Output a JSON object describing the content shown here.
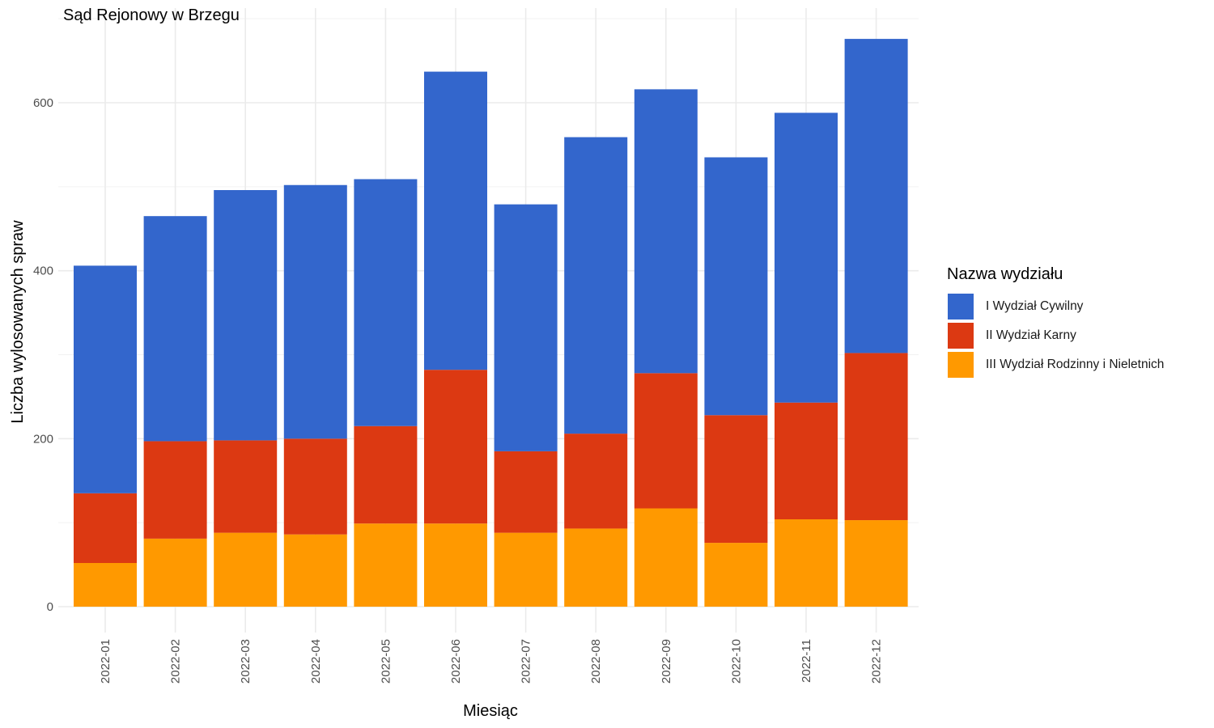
{
  "chart_data": {
    "type": "bar",
    "stacked": true,
    "title": "Sąd Rejonowy w Brzegu",
    "xlabel": "Miesiąc",
    "ylabel": "Liczba wylosowanych spraw",
    "ylim": [
      0,
      710
    ],
    "yticks": [
      0,
      200,
      400,
      600
    ],
    "ytick_labels": [
      "0",
      "200",
      "400",
      "600"
    ],
    "grid": true,
    "legend_title": "Nazwa wydziału",
    "legend_position": "right",
    "categories": [
      "2022-01",
      "2022-02",
      "2022-03",
      "2022-04",
      "2022-05",
      "2022-06",
      "2022-07",
      "2022-08",
      "2022-09",
      "2022-10",
      "2022-11",
      "2022-12"
    ],
    "series": [
      {
        "name": "III Wydział Rodzinny i Nieletnich",
        "color": "#FF9900",
        "values": [
          52,
          81,
          88,
          86,
          99,
          99,
          88,
          93,
          117,
          76,
          104,
          103
        ]
      },
      {
        "name": "II Wydział Karny",
        "color": "#DC3912",
        "values": [
          83,
          116,
          110,
          114,
          116,
          183,
          97,
          113,
          161,
          152,
          139,
          199
        ]
      },
      {
        "name": "I Wydział Cywilny",
        "color": "#3366CC",
        "values": [
          271,
          268,
          298,
          302,
          294,
          355,
          294,
          353,
          338,
          307,
          345,
          374
        ]
      }
    ]
  }
}
